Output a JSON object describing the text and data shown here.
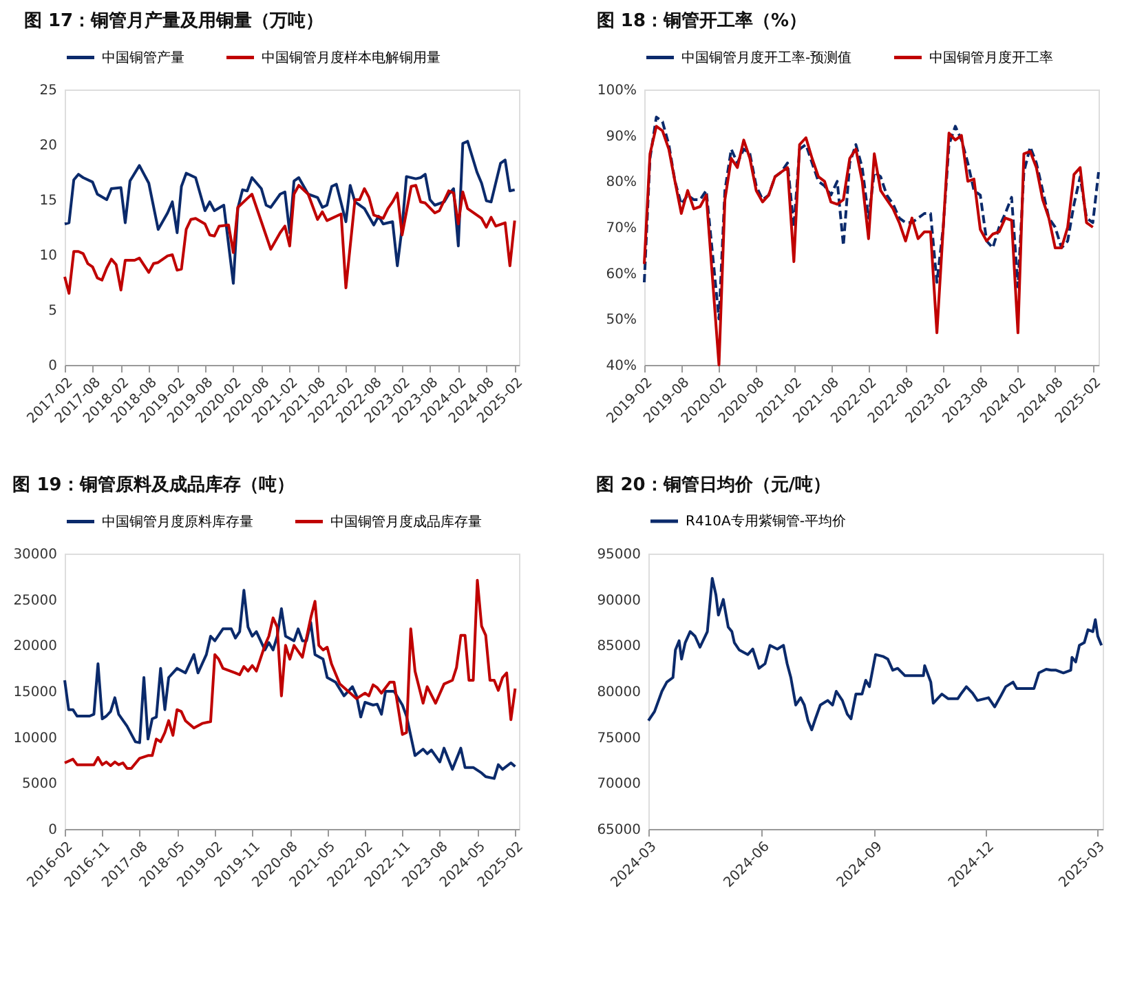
{
  "chart_data": [
    {
      "type": "line",
      "title": "图 17：铜管月产量及用铜量（万吨）",
      "legend": "top",
      "ylim": [
        0,
        25
      ],
      "yticks": [
        0,
        5,
        10,
        15,
        20,
        25
      ],
      "xlim": [
        "2017-02",
        "2025-03"
      ],
      "xticks": [
        "2017-02",
        "2017-08",
        "2018-02",
        "2018-08",
        "2019-02",
        "2019-08",
        "2020-02",
        "2020-08",
        "2021-02",
        "2021-08",
        "2022-02",
        "2022-08",
        "2023-02",
        "2023-08",
        "2024-02",
        "2024-08",
        "2025-02"
      ],
      "series": [
        {
          "name": "中国铜管产量",
          "color": "#0b2a6b",
          "line_style": "solid",
          "x": [
            "2017-02",
            "2017-03",
            "2017-04",
            "2017-05",
            "2017-06",
            "2017-08",
            "2017-09",
            "2017-11",
            "2017-12",
            "2018-02",
            "2018-03",
            "2018-04",
            "2018-06",
            "2018-08",
            "2018-10",
            "2018-12",
            "2019-01",
            "2019-02",
            "2019-03",
            "2019-04",
            "2019-06",
            "2019-08",
            "2019-09",
            "2019-10",
            "2019-12",
            "2020-02",
            "2020-03",
            "2020-04",
            "2020-05",
            "2020-06",
            "2020-08",
            "2020-09",
            "2020-10",
            "2020-12",
            "2021-01",
            "2021-02",
            "2021-03",
            "2021-04",
            "2021-06",
            "2021-08",
            "2021-09",
            "2021-10",
            "2021-11",
            "2021-12",
            "2022-02",
            "2022-03",
            "2022-04",
            "2022-06",
            "2022-08",
            "2022-09",
            "2022-10",
            "2022-12",
            "2023-01",
            "2023-02",
            "2023-03",
            "2023-05",
            "2023-06",
            "2023-07",
            "2023-08",
            "2023-09",
            "2023-11",
            "2023-12",
            "2024-01",
            "2024-02",
            "2024-03",
            "2024-04",
            "2024-06",
            "2024-07",
            "2024-08",
            "2024-09",
            "2024-11",
            "2024-12",
            "2025-01",
            "2025-02"
          ],
          "values": [
            12.8,
            12.9,
            16.8,
            17.3,
            17.0,
            16.6,
            15.5,
            15.0,
            16.0,
            16.1,
            12.9,
            16.7,
            18.1,
            16.5,
            12.3,
            13.8,
            14.8,
            12.0,
            16.2,
            17.4,
            17.0,
            14.0,
            14.8,
            14.0,
            14.5,
            7.4,
            14.2,
            15.9,
            15.8,
            17.0,
            16.0,
            14.5,
            14.3,
            15.5,
            15.7,
            12.0,
            16.7,
            17.0,
            15.5,
            15.2,
            14.3,
            14.5,
            16.2,
            16.4,
            13.0,
            16.3,
            14.8,
            14.2,
            12.7,
            13.5,
            12.8,
            13.0,
            9.0,
            12.5,
            17.1,
            16.9,
            17.0,
            17.3,
            15.0,
            14.5,
            14.8,
            15.5,
            16.0,
            10.8,
            20.1,
            20.3,
            17.5,
            16.5,
            14.9,
            14.8,
            18.3,
            18.6,
            15.8,
            15.9
          ]
        },
        {
          "name": "中国铜管月度样本电解铜用量",
          "color": "#c00000",
          "line_style": "solid",
          "x": [
            "2017-02",
            "2017-03",
            "2017-04",
            "2017-05",
            "2017-06",
            "2017-07",
            "2017-08",
            "2017-09",
            "2017-10",
            "2017-11",
            "2017-12",
            "2018-01",
            "2018-02",
            "2018-03",
            "2018-05",
            "2018-06",
            "2018-08",
            "2018-09",
            "2018-10",
            "2018-12",
            "2019-01",
            "2019-02",
            "2019-03",
            "2019-04",
            "2019-05",
            "2019-06",
            "2019-08",
            "2019-09",
            "2019-10",
            "2019-11",
            "2020-01",
            "2020-02",
            "2020-03",
            "2020-05",
            "2020-06",
            "2020-08",
            "2020-10",
            "2020-12",
            "2021-01",
            "2021-02",
            "2021-03",
            "2021-04",
            "2021-06",
            "2021-08",
            "2021-09",
            "2021-10",
            "2022-01",
            "2022-02",
            "2022-04",
            "2022-05",
            "2022-06",
            "2022-07",
            "2022-08",
            "2022-10",
            "2022-11",
            "2022-12",
            "2023-01",
            "2023-02",
            "2023-04",
            "2023-05",
            "2023-06",
            "2023-07",
            "2023-09",
            "2023-10",
            "2023-12",
            "2024-01",
            "2024-02",
            "2024-03",
            "2024-04",
            "2024-07",
            "2024-08",
            "2024-09",
            "2024-10",
            "2024-12",
            "2025-01",
            "2025-02"
          ],
          "values": [
            8.0,
            6.5,
            10.3,
            10.3,
            10.1,
            9.2,
            8.9,
            7.9,
            7.7,
            8.8,
            9.6,
            9.1,
            6.8,
            9.5,
            9.5,
            9.7,
            8.4,
            9.2,
            9.3,
            9.9,
            10.0,
            8.6,
            8.7,
            12.3,
            13.2,
            13.3,
            12.8,
            11.8,
            11.7,
            12.6,
            12.7,
            10.2,
            14.3,
            15.1,
            15.5,
            13.0,
            10.5,
            12.0,
            12.6,
            10.8,
            15.5,
            16.3,
            15.5,
            13.2,
            13.9,
            13.1,
            13.7,
            7.0,
            15.0,
            15.0,
            16.0,
            15.2,
            13.6,
            13.3,
            14.2,
            14.8,
            15.6,
            11.8,
            16.2,
            16.3,
            14.8,
            14.7,
            13.8,
            14.0,
            15.8,
            15.6,
            12.8,
            15.7,
            14.2,
            13.3,
            12.5,
            13.4,
            12.6,
            12.9,
            9.0,
            13.1
          ]
        }
      ]
    },
    {
      "type": "line",
      "title": "图 18：铜管开工率（%）",
      "legend": "top",
      "ylim": [
        40,
        100
      ],
      "yticks": [
        {
          "value": 40,
          "label": "40%"
        },
        {
          "value": 50,
          "label": "50%"
        },
        {
          "value": 60,
          "label": "60%"
        },
        {
          "value": 70,
          "label": "70%"
        },
        {
          "value": 80,
          "label": "80%"
        },
        {
          "value": 90,
          "label": "90%"
        },
        {
          "value": 100,
          "label": "100%"
        }
      ],
      "xlim": [
        "2019-02",
        "2025-03"
      ],
      "xticks": [
        "2019-02",
        "2019-08",
        "2020-02",
        "2020-08",
        "2021-02",
        "2021-08",
        "2022-02",
        "2022-08",
        "2023-02",
        "2023-08",
        "2024-02",
        "2024-08",
        "2025-02"
      ],
      "series": [
        {
          "name": "中国铜管月度开工率-预测值",
          "color": "#0b2a6b",
          "line_style": "dashed",
          "x": [
            "2019-02",
            "2019-03",
            "2019-04",
            "2019-05",
            "2019-06",
            "2019-07",
            "2019-08",
            "2019-09",
            "2019-10",
            "2019-11",
            "2019-12",
            "2020-02",
            "2020-03",
            "2020-04",
            "2020-05",
            "2020-06",
            "2020-07",
            "2020-08",
            "2020-09",
            "2020-10",
            "2020-11",
            "2020-12",
            "2021-01",
            "2021-02",
            "2021-03",
            "2021-04",
            "2021-05",
            "2021-06",
            "2021-07",
            "2021-08",
            "2021-09",
            "2021-10",
            "2021-11",
            "2021-12",
            "2022-01",
            "2022-02",
            "2022-03",
            "2022-04",
            "2022-05",
            "2022-06",
            "2022-07",
            "2022-08",
            "2022-09",
            "2022-10",
            "2022-11",
            "2022-12",
            "2023-01",
            "2023-02",
            "2023-03",
            "2023-04",
            "2023-05",
            "2023-06",
            "2023-07",
            "2023-08",
            "2023-09",
            "2023-10",
            "2023-11",
            "2023-12",
            "2024-01",
            "2024-02",
            "2024-03",
            "2024-04",
            "2024-05",
            "2024-06",
            "2024-07",
            "2024-08",
            "2024-09",
            "2024-10",
            "2024-11",
            "2024-12",
            "2025-01",
            "2025-02",
            "2025-03"
          ],
          "values": [
            58,
            85,
            94,
            93,
            88,
            80,
            75,
            77,
            76,
            76,
            78,
            50,
            78,
            87,
            84,
            87,
            86,
            79,
            76,
            77,
            81,
            82,
            84,
            70,
            87,
            88,
            84,
            80,
            79,
            77,
            80,
            66,
            84,
            88,
            83,
            72,
            82,
            81,
            77,
            75,
            72,
            71,
            71,
            72,
            73,
            73,
            58,
            70,
            88,
            92,
            89,
            84,
            78,
            77,
            67,
            65.5,
            70,
            73,
            76.5,
            57,
            82,
            87.5,
            84,
            78,
            72,
            70,
            65.5,
            67,
            75,
            81,
            72,
            71,
            82
          ]
        },
        {
          "name": "中国铜管月度开工率",
          "color": "#c00000",
          "line_style": "solid",
          "x": [
            "2019-02",
            "2019-03",
            "2019-04",
            "2019-05",
            "2019-06",
            "2019-07",
            "2019-08",
            "2019-09",
            "2019-10",
            "2019-11",
            "2019-12",
            "2020-02",
            "2020-03",
            "2020-04",
            "2020-05",
            "2020-06",
            "2020-07",
            "2020-08",
            "2020-09",
            "2020-10",
            "2020-11",
            "2020-12",
            "2021-01",
            "2021-02",
            "2021-03",
            "2021-04",
            "2021-05",
            "2021-06",
            "2021-07",
            "2021-08",
            "2021-09",
            "2021-10",
            "2021-11",
            "2021-12",
            "2022-01",
            "2022-02",
            "2022-03",
            "2022-04",
            "2022-05",
            "2022-06",
            "2022-07",
            "2022-08",
            "2022-09",
            "2022-10",
            "2022-11",
            "2022-12",
            "2023-01",
            "2023-02",
            "2023-03",
            "2023-04",
            "2023-05",
            "2023-06",
            "2023-07",
            "2023-08",
            "2023-09",
            "2023-10",
            "2023-11",
            "2023-12",
            "2024-01",
            "2024-02",
            "2024-03",
            "2024-04",
            "2024-05",
            "2024-06",
            "2024-07",
            "2024-08",
            "2024-09",
            "2024-10",
            "2024-11",
            "2024-12",
            "2025-01",
            "2025-02"
          ],
          "values": [
            62,
            86,
            92,
            91,
            87,
            80,
            73,
            78,
            74,
            74.5,
            77,
            40,
            76,
            85,
            83,
            89,
            85,
            78,
            75.5,
            77,
            81,
            82,
            83,
            62.5,
            88,
            89.5,
            85,
            81,
            80,
            75.5,
            75,
            76,
            85,
            87,
            80,
            67.5,
            86,
            78,
            76,
            74,
            71,
            67,
            72,
            67.5,
            69,
            69,
            47,
            70,
            90.5,
            89,
            90,
            80,
            80.5,
            69.5,
            67,
            68.5,
            69,
            72,
            71.5,
            47,
            86,
            86.5,
            83,
            76,
            72,
            65.5,
            65.5,
            70,
            81.5,
            83,
            71,
            70
          ]
        }
      ]
    },
    {
      "type": "line",
      "title": "图 19：铜管原料及成品库存（吨）",
      "legend": "top",
      "ylim": [
        0,
        30000
      ],
      "yticks": [
        0,
        5000,
        10000,
        15000,
        20000,
        25000,
        30000
      ],
      "xlim": [
        "2016-02",
        "2025-03"
      ],
      "xticks": [
        "2016-02",
        "2016-11",
        "2017-08",
        "2018-05",
        "2019-02",
        "2019-11",
        "2020-08",
        "2021-05",
        "2022-02",
        "2022-11",
        "2023-08",
        "2024-05",
        "2025-02"
      ],
      "series": [
        {
          "name": "中国铜管月度原料库存量",
          "color": "#0b2a6b",
          "line_style": "solid",
          "x": [
            "2016-02",
            "2016-03",
            "2016-04",
            "2016-05",
            "2016-08",
            "2016-09",
            "2016-10",
            "2016-11",
            "2016-12",
            "2017-01",
            "2017-02",
            "2017-03",
            "2017-05",
            "2017-07",
            "2017-08",
            "2017-09",
            "2017-10",
            "2017-11",
            "2017-12",
            "2018-01",
            "2018-02",
            "2018-03",
            "2018-05",
            "2018-07",
            "2018-09",
            "2018-10",
            "2018-12",
            "2019-01",
            "2019-02",
            "2019-04",
            "2019-06",
            "2019-07",
            "2019-08",
            "2019-09",
            "2019-10",
            "2019-11",
            "2019-12",
            "2020-01",
            "2020-02",
            "2020-03",
            "2020-04",
            "2020-05",
            "2020-06",
            "2020-07",
            "2020-09",
            "2020-10",
            "2020-11",
            "2020-12",
            "2021-01",
            "2021-02",
            "2021-04",
            "2021-05",
            "2021-07",
            "2021-09",
            "2021-11",
            "2021-12",
            "2022-01",
            "2022-02",
            "2022-04",
            "2022-05",
            "2022-06",
            "2022-07",
            "2022-09",
            "2022-11",
            "2022-12",
            "2023-02",
            "2023-04",
            "2023-05",
            "2023-06",
            "2023-08",
            "2023-09",
            "2023-11",
            "2024-01",
            "2024-02",
            "2024-04",
            "2024-06",
            "2024-07",
            "2024-09",
            "2024-10",
            "2024-11",
            "2025-01",
            "2025-02"
          ],
          "values": [
            16200,
            13000,
            13000,
            12300,
            12300,
            12500,
            18000,
            12000,
            12300,
            12800,
            14300,
            12500,
            11200,
            9500,
            9400,
            16500,
            9800,
            12000,
            12200,
            17500,
            13000,
            16500,
            17500,
            17000,
            19000,
            17000,
            19000,
            21000,
            20500,
            21800,
            21800,
            20800,
            21500,
            26000,
            22000,
            21000,
            21500,
            20500,
            19500,
            20300,
            19500,
            21000,
            24000,
            21000,
            20500,
            21800,
            20500,
            20500,
            22500,
            19000,
            18500,
            16500,
            16000,
            14500,
            15500,
            14500,
            12200,
            13800,
            13500,
            13600,
            12500,
            15000,
            15000,
            13500,
            12300,
            8000,
            8700,
            8200,
            8600,
            7300,
            8800,
            6500,
            8800,
            6700,
            6700,
            6100,
            5700,
            5500,
            7000,
            6500,
            7200,
            6800
          ]
        },
        {
          "name": "中国铜管月度成品库存量",
          "color": "#c00000",
          "line_style": "solid",
          "x": [
            "2016-02",
            "2016-04",
            "2016-05",
            "2016-07",
            "2016-09",
            "2016-10",
            "2016-11",
            "2016-12",
            "2017-01",
            "2017-02",
            "2017-03",
            "2017-04",
            "2017-05",
            "2017-06",
            "2017-08",
            "2017-10",
            "2017-11",
            "2017-12",
            "2018-01",
            "2018-02",
            "2018-03",
            "2018-04",
            "2018-05",
            "2018-06",
            "2018-07",
            "2018-09",
            "2018-11",
            "2019-01",
            "2019-02",
            "2019-03",
            "2019-04",
            "2019-07",
            "2019-08",
            "2019-09",
            "2019-10",
            "2019-11",
            "2019-12",
            "2020-02",
            "2020-03",
            "2020-04",
            "2020-05",
            "2020-06",
            "2020-07",
            "2020-08",
            "2020-09",
            "2020-11",
            "2021-01",
            "2021-02",
            "2021-03",
            "2021-04",
            "2021-05",
            "2021-06",
            "2021-08",
            "2021-10",
            "2021-12",
            "2022-02",
            "2022-03",
            "2022-04",
            "2022-05",
            "2022-06",
            "2022-08",
            "2022-09",
            "2022-11",
            "2022-12",
            "2023-01",
            "2023-02",
            "2023-04",
            "2023-05",
            "2023-07",
            "2023-09",
            "2023-11",
            "2023-12",
            "2024-01",
            "2024-02",
            "2024-03",
            "2024-04",
            "2024-05",
            "2024-06",
            "2024-07",
            "2024-08",
            "2024-09",
            "2024-10",
            "2024-11",
            "2024-12",
            "2025-01",
            "2025-02"
          ],
          "values": [
            7200,
            7600,
            7000,
            7000,
            7000,
            7800,
            7000,
            7300,
            6900,
            7300,
            7000,
            7200,
            6600,
            6600,
            7700,
            8000,
            8000,
            9800,
            9500,
            10500,
            11800,
            10200,
            13000,
            12800,
            11800,
            11000,
            11500,
            11700,
            19000,
            18500,
            17500,
            17000,
            16800,
            17700,
            17200,
            17800,
            17200,
            20000,
            21000,
            23000,
            22000,
            14500,
            20000,
            18500,
            20000,
            18700,
            23000,
            24800,
            20000,
            19500,
            19800,
            18000,
            15800,
            15000,
            14200,
            14800,
            14500,
            15700,
            15400,
            14800,
            16000,
            16000,
            10300,
            10500,
            21800,
            17200,
            13700,
            15500,
            13700,
            15800,
            16200,
            17600,
            21100,
            21100,
            16200,
            16200,
            27100,
            22100,
            21100,
            16200,
            16200,
            15100,
            16500,
            17000,
            11900,
            15300
          ]
        }
      ]
    },
    {
      "type": "line",
      "title": "图 20：铜管日均价（元/吨）",
      "legend": "top",
      "ylim": [
        65000,
        95000
      ],
      "yticks": [
        65000,
        70000,
        75000,
        80000,
        85000,
        90000,
        95000
      ],
      "xlim": [
        "2024-03-01",
        "2025-03-06"
      ],
      "xticks": [
        "2024-03",
        "2024-06",
        "2024-09",
        "2024-12",
        "2025-03"
      ],
      "series": [
        {
          "name": "R410A专用紫铜管-平均价",
          "color": "#0b2a6b",
          "line_style": "solid",
          "x": [
            "2024-03-01",
            "2024-03-06",
            "2024-03-12",
            "2024-03-16",
            "2024-03-21",
            "2024-03-23",
            "2024-03-26",
            "2024-03-28",
            "2024-03-31",
            "2024-04-04",
            "2024-04-08",
            "2024-04-12",
            "2024-04-18",
            "2024-04-22",
            "2024-04-25",
            "2024-04-27",
            "2024-05-01",
            "2024-05-05",
            "2024-05-08",
            "2024-05-10",
            "2024-05-14",
            "2024-05-21",
            "2024-05-25",
            "2024-05-30",
            "2024-06-04",
            "2024-06-08",
            "2024-06-14",
            "2024-06-19",
            "2024-06-22",
            "2024-06-25",
            "2024-06-29",
            "2024-07-03",
            "2024-07-06",
            "2024-07-09",
            "2024-07-12",
            "2024-07-15",
            "2024-07-19",
            "2024-07-25",
            "2024-07-29",
            "2024-08-01",
            "2024-08-06",
            "2024-08-10",
            "2024-08-13",
            "2024-08-17",
            "2024-08-22",
            "2024-08-25",
            "2024-08-28",
            "2024-09-02",
            "2024-09-08",
            "2024-09-12",
            "2024-09-16",
            "2024-09-20",
            "2024-09-26",
            "2024-10-05",
            "2024-10-11",
            "2024-10-12",
            "2024-10-17",
            "2024-10-19",
            "2024-10-26",
            "2024-10-31",
            "2024-11-08",
            "2024-11-11",
            "2024-11-15",
            "2024-11-20",
            "2024-11-24",
            "2024-12-03",
            "2024-12-08",
            "2024-12-13",
            "2024-12-17",
            "2024-12-23",
            "2024-12-26",
            "2024-12-30",
            "2025-01-09",
            "2025-01-13",
            "2025-01-19",
            "2025-01-23",
            "2025-01-27",
            "2025-02-02",
            "2025-02-08",
            "2025-02-09",
            "2025-02-12",
            "2025-02-15",
            "2025-02-19",
            "2025-02-22",
            "2025-02-26",
            "2025-02-28",
            "2025-03-02",
            "2025-03-05"
          ],
          "values": [
            76800,
            77800,
            80000,
            81000,
            81500,
            84500,
            85500,
            83500,
            85300,
            86500,
            86000,
            84800,
            86500,
            92300,
            90500,
            88300,
            90000,
            87000,
            86500,
            85300,
            84500,
            84000,
            84600,
            82500,
            83000,
            85000,
            84600,
            85000,
            83000,
            81500,
            78500,
            79300,
            78500,
            76800,
            75800,
            77000,
            78500,
            79000,
            78500,
            80000,
            79000,
            77500,
            77000,
            79700,
            79700,
            81200,
            80500,
            84000,
            83800,
            83500,
            82300,
            82500,
            81700,
            81700,
            81700,
            82800,
            81000,
            78700,
            79700,
            79200,
            79200,
            79800,
            80500,
            79800,
            79000,
            79300,
            78300,
            79500,
            80500,
            81000,
            80300,
            80300,
            80300,
            82000,
            82400,
            82300,
            82300,
            82000,
            82300,
            83700,
            83200,
            85000,
            85300,
            86700,
            86500,
            87800,
            86000,
            85000
          ]
        }
      ]
    }
  ]
}
